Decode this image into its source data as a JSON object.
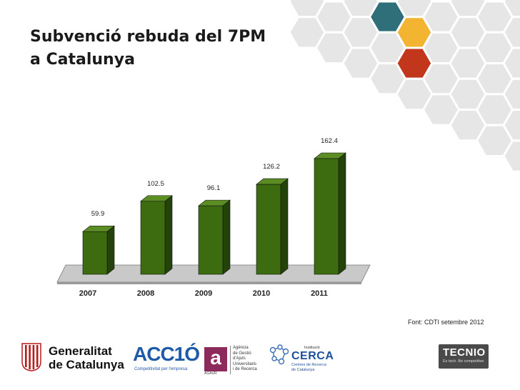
{
  "slide": {
    "title_line1": "Subvenció rebuda del 7PM",
    "title_line2": "a Catalunya",
    "source": "Font: CDTI setembre 2012"
  },
  "colors": {
    "bar_front": "#3d6b0f",
    "bar_top": "#5c8d25",
    "bar_side": "#24430a",
    "floor": "#c9c9c9",
    "hex_gray": "#e6e6e6",
    "hex_teal": "#2f6f7a",
    "hex_yellow": "#f2b431",
    "hex_red": "#c2361b"
  },
  "chart_data": {
    "type": "bar",
    "categories": [
      "2007",
      "2008",
      "2009",
      "2010",
      "2011"
    ],
    "values": [
      59.9,
      102.5,
      96.1,
      126.2,
      162.4
    ],
    "data_labels": [
      "59.9",
      "102.5",
      "96.1",
      "126.2",
      "162.4"
    ],
    "title": "",
    "xlabel": "",
    "ylabel": "",
    "ylim": [
      0,
      162.4
    ],
    "grid": false,
    "legend": "none",
    "style": "3d"
  },
  "logos": {
    "generalitat": {
      "line1": "Generalitat",
      "line2": "de Catalunya"
    },
    "acc10": {
      "name": "ACC1Ó",
      "tagline": "Competitivitat per l'empresa"
    },
    "agaur": {
      "mark": "a",
      "abbr": "AGAUR",
      "text": "Agència\nde Gestió\nd'Ajuts\nUniversitaris\ni de Recerca"
    },
    "cerca": {
      "top": "Institució",
      "name": "CERCA",
      "sub": "Centres de Recerca\nde Catalunya"
    },
    "tecnio": {
      "name": "TECNIO",
      "tagline": "Es tech. Be competitive"
    }
  }
}
